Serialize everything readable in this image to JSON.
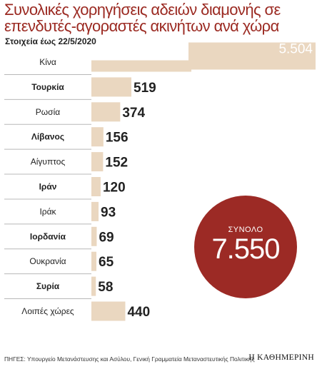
{
  "header": {
    "title": "Συνολικές χορηγήσεις αδειών διαμονής σε επενδυτές-αγοραστές ακινήτων ανά χώρα",
    "subtitle": "Στοιχεία έως 22/5/2020"
  },
  "chart_data": {
    "type": "bar",
    "orientation": "horizontal",
    "categories": [
      "Κίνα",
      "Τουρκία",
      "Ρωσία",
      "Λίβανος",
      "Αίγυπτος",
      "Ιράν",
      "Ιράκ",
      "Ιορδανία",
      "Ουκρανία",
      "Συρία",
      "Λοιπές χώρες"
    ],
    "values": [
      5504,
      519,
      374,
      156,
      152,
      120,
      93,
      69,
      65,
      58,
      440
    ],
    "value_labels": [
      "5.504",
      "519",
      "374",
      "156",
      "152",
      "120",
      "93",
      "69",
      "65",
      "58",
      "440"
    ],
    "bold_categories": [
      false,
      true,
      false,
      true,
      false,
      true,
      false,
      true,
      false,
      true,
      false
    ],
    "bar_color": "#ead7c0",
    "axis_break_on": "Κίνα",
    "xlabel": "",
    "ylabel": "",
    "grid": false
  },
  "total": {
    "label": "ΣΥΝΟΛΟ",
    "value": "7.550",
    "color": "#9c2a25"
  },
  "footer": {
    "sources": "ΠΗΓΕΣ: Υπουργείο Μετανάστευσης και Ασύλου, Γενική Γραμματεία Μεταναστευτικής Πολιτικής",
    "brand": "Η ΚΑΘΗΜΕΡΙΝΗ"
  }
}
